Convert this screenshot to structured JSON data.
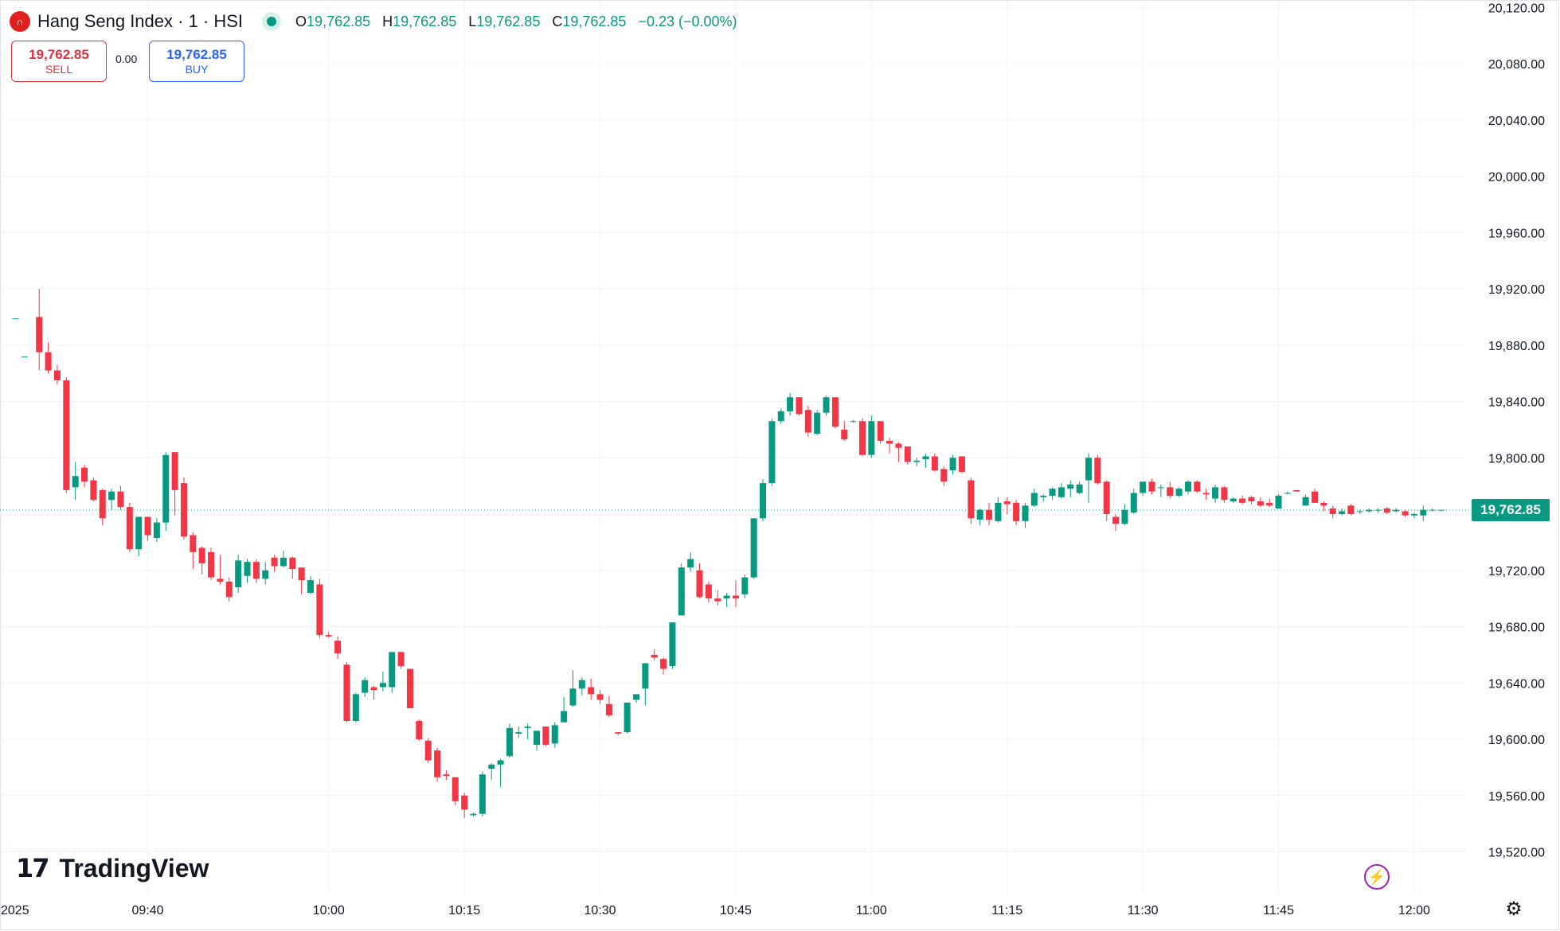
{
  "header": {
    "logo_text": "∩",
    "symbol": "Hang Seng Index · 1 · HSI",
    "open_label": "O",
    "open": "19,762.85",
    "high_label": "H",
    "high": "19,762.85",
    "low_label": "L",
    "low": "19,762.85",
    "close_label": "C",
    "close": "19,762.85",
    "change": "−0.23 (−0.00%)"
  },
  "trade": {
    "sell_price": "19,762.85",
    "sell_label": "SELL",
    "spread": "0.00",
    "buy_price": "19,762.85",
    "buy_label": "BUY"
  },
  "branding": {
    "mark": "17",
    "name": "TradingView"
  },
  "icons": {
    "bolt": "⚡",
    "settings": "⚙"
  },
  "colors": {
    "up": "#089981",
    "down": "#f23645",
    "grid": "#f0f3fa",
    "text": "#131722"
  },
  "chart_data": {
    "type": "candlestick",
    "interval": "1 minute",
    "ylim": [
      19500,
      20125
    ],
    "y_ticks": [
      "20,120.00",
      "20,080.00",
      "20,040.00",
      "20,000.00",
      "19,960.00",
      "19,920.00",
      "19,880.00",
      "19,840.00",
      "19,800.00",
      "19,760.00",
      "19,720.00",
      "19,680.00",
      "19,640.00",
      "19,600.00",
      "19,560.00",
      "19,520.00"
    ],
    "x_ticks": [
      {
        "minute": 24,
        "label": "2025"
      },
      {
        "minute": 40,
        "label": "09:40"
      },
      {
        "minute": 60,
        "label": "10:00"
      },
      {
        "minute": 75,
        "label": "10:15"
      },
      {
        "minute": 90,
        "label": "10:30"
      },
      {
        "minute": 105,
        "label": "10:45"
      },
      {
        "minute": 120,
        "label": "11:00"
      },
      {
        "minute": 135,
        "label": "11:15"
      },
      {
        "minute": 150,
        "label": "11:30"
      },
      {
        "minute": 165,
        "label": "11:45"
      },
      {
        "minute": 180,
        "label": "12:00"
      }
    ],
    "last_price": 19762.85,
    "last_price_label": "19,762.85",
    "candles": [
      {
        "o": 19899,
        "h": 19899,
        "l": 19899,
        "c": 19899
      },
      {
        "o": 19872,
        "h": 19872,
        "l": 19872,
        "c": 19872
      },
      {
        "o": 19900,
        "h": 19920,
        "l": 19862,
        "c": 19875
      },
      {
        "o": 19875,
        "h": 19882,
        "l": 19860,
        "c": 19862
      },
      {
        "o": 19862,
        "h": 19866,
        "l": 19852,
        "c": 19855
      },
      {
        "o": 19855,
        "h": 19857,
        "l": 19775,
        "c": 19777
      },
      {
        "o": 19779,
        "h": 19797,
        "l": 19770,
        "c": 19787
      },
      {
        "o": 19793,
        "h": 19795,
        "l": 19779,
        "c": 19783
      },
      {
        "o": 19784,
        "h": 19786,
        "l": 19769,
        "c": 19770
      },
      {
        "o": 19777,
        "h": 19778,
        "l": 19752,
        "c": 19757
      },
      {
        "o": 19770,
        "h": 19778,
        "l": 19763,
        "c": 19776
      },
      {
        "o": 19776,
        "h": 19780,
        "l": 19763,
        "c": 19765
      },
      {
        "o": 19765,
        "h": 19768,
        "l": 19733,
        "c": 19735
      },
      {
        "o": 19735,
        "h": 19754,
        "l": 19730,
        "c": 19758
      },
      {
        "o": 19758,
        "h": 19758,
        "l": 19741,
        "c": 19745
      },
      {
        "o": 19743,
        "h": 19757,
        "l": 19740,
        "c": 19754
      },
      {
        "o": 19754,
        "h": 19804,
        "l": 19748,
        "c": 19802
      },
      {
        "o": 19804,
        "h": 19804,
        "l": 19759,
        "c": 19777
      },
      {
        "o": 19782,
        "h": 19786,
        "l": 19742,
        "c": 19744
      },
      {
        "o": 19745,
        "h": 19747,
        "l": 19721,
        "c": 19733
      },
      {
        "o": 19736,
        "h": 19737,
        "l": 19717,
        "c": 19725
      },
      {
        "o": 19733,
        "h": 19736,
        "l": 19713,
        "c": 19715
      },
      {
        "o": 19714,
        "h": 19731,
        "l": 19710,
        "c": 19712
      },
      {
        "o": 19712,
        "h": 19715,
        "l": 19698,
        "c": 19701
      },
      {
        "o": 19708,
        "h": 19731,
        "l": 19704,
        "c": 19727
      },
      {
        "o": 19716,
        "h": 19728,
        "l": 19711,
        "c": 19726
      },
      {
        "o": 19726,
        "h": 19728,
        "l": 19711,
        "c": 19714
      },
      {
        "o": 19714,
        "h": 19726,
        "l": 19710,
        "c": 19720
      },
      {
        "o": 19729,
        "h": 19731,
        "l": 19719,
        "c": 19723
      },
      {
        "o": 19723,
        "h": 19734,
        "l": 19722,
        "c": 19729
      },
      {
        "o": 19729,
        "h": 19730,
        "l": 19714,
        "c": 19721
      },
      {
        "o": 19722,
        "h": 19722,
        "l": 19703,
        "c": 19713
      },
      {
        "o": 19704,
        "h": 19716,
        "l": 19703,
        "c": 19713
      },
      {
        "o": 19710,
        "h": 19714,
        "l": 19672,
        "c": 19674
      },
      {
        "o": 19674,
        "h": 19676,
        "l": 19672,
        "c": 19673
      },
      {
        "o": 19670,
        "h": 19673,
        "l": 19657,
        "c": 19661
      },
      {
        "o": 19653,
        "h": 19655,
        "l": 19612,
        "c": 19613
      },
      {
        "o": 19613,
        "h": 19633,
        "l": 19612,
        "c": 19632
      },
      {
        "o": 19633,
        "h": 19644,
        "l": 19630,
        "c": 19642
      },
      {
        "o": 19637,
        "h": 19638,
        "l": 19628,
        "c": 19635
      },
      {
        "o": 19637,
        "h": 19648,
        "l": 19634,
        "c": 19640
      },
      {
        "o": 19637,
        "h": 19662,
        "l": 19633,
        "c": 19662
      },
      {
        "o": 19662,
        "h": 19662,
        "l": 19650,
        "c": 19652
      },
      {
        "o": 19650,
        "h": 19648,
        "l": 19622,
        "c": 19622
      },
      {
        "o": 19613,
        "h": 19614,
        "l": 19599,
        "c": 19600
      },
      {
        "o": 19599,
        "h": 19601,
        "l": 19583,
        "c": 19585
      },
      {
        "o": 19592,
        "h": 19594,
        "l": 19570,
        "c": 19573
      },
      {
        "o": 19575,
        "h": 19578,
        "l": 19571,
        "c": 19574
      },
      {
        "o": 19573,
        "h": 19573,
        "l": 19553,
        "c": 19556
      },
      {
        "o": 19560,
        "h": 19562,
        "l": 19544,
        "c": 19550
      },
      {
        "o": 19546,
        "h": 19548,
        "l": 19545,
        "c": 19547
      },
      {
        "o": 19547,
        "h": 19577,
        "l": 19545,
        "c": 19575
      },
      {
        "o": 19579,
        "h": 19583,
        "l": 19571,
        "c": 19582
      },
      {
        "o": 19582,
        "h": 19586,
        "l": 19566,
        "c": 19585
      },
      {
        "o": 19588,
        "h": 19611,
        "l": 19587,
        "c": 19608
      },
      {
        "o": 19604,
        "h": 19609,
        "l": 19601,
        "c": 19605
      },
      {
        "o": 19608,
        "h": 19611,
        "l": 19600,
        "c": 19609
      },
      {
        "o": 19596,
        "h": 19603,
        "l": 19592,
        "c": 19606
      },
      {
        "o": 19609,
        "h": 19609,
        "l": 19595,
        "c": 19596
      },
      {
        "o": 19597,
        "h": 19612,
        "l": 19594,
        "c": 19610
      },
      {
        "o": 19612,
        "h": 19630,
        "l": 19613,
        "c": 19620
      },
      {
        "o": 19624,
        "h": 19649,
        "l": 19623,
        "c": 19636
      },
      {
        "o": 19636,
        "h": 19644,
        "l": 19631,
        "c": 19642
      },
      {
        "o": 19637,
        "h": 19643,
        "l": 19628,
        "c": 19632
      },
      {
        "o": 19632,
        "h": 19635,
        "l": 19625,
        "c": 19628
      },
      {
        "o": 19625,
        "h": 19631,
        "l": 19616,
        "c": 19617
      },
      {
        "o": 19605,
        "h": 19604,
        "l": 19603,
        "c": 19604
      },
      {
        "o": 19605,
        "h": 19626,
        "l": 19604,
        "c": 19626
      },
      {
        "o": 19628,
        "h": 19632,
        "l": 19626,
        "c": 19632
      },
      {
        "o": 19636,
        "h": 19653,
        "l": 19624,
        "c": 19654
      },
      {
        "o": 19660,
        "h": 19664,
        "l": 19656,
        "c": 19658
      },
      {
        "o": 19657,
        "h": 19658,
        "l": 19646,
        "c": 19650
      },
      {
        "o": 19652,
        "h": 19683,
        "l": 19650,
        "c": 19683
      },
      {
        "o": 19688,
        "h": 19725,
        "l": 19688,
        "c": 19722
      },
      {
        "o": 19722,
        "h": 19733,
        "l": 19719,
        "c": 19728
      },
      {
        "o": 19720,
        "h": 19725,
        "l": 19700,
        "c": 19701
      },
      {
        "o": 19710,
        "h": 19712,
        "l": 19697,
        "c": 19700
      },
      {
        "o": 19700,
        "h": 19706,
        "l": 19695,
        "c": 19698
      },
      {
        "o": 19700,
        "h": 19704,
        "l": 19694,
        "c": 19702
      },
      {
        "o": 19702,
        "h": 19713,
        "l": 19694,
        "c": 19700
      },
      {
        "o": 19703,
        "h": 19717,
        "l": 19700,
        "c": 19715
      },
      {
        "o": 19715,
        "h": 19757,
        "l": 19714,
        "c": 19757
      },
      {
        "o": 19757,
        "h": 19785,
        "l": 19755,
        "c": 19782
      },
      {
        "o": 19782,
        "h": 19828,
        "l": 19780,
        "c": 19826
      },
      {
        "o": 19826,
        "h": 19835,
        "l": 19824,
        "c": 19833
      },
      {
        "o": 19833,
        "h": 19846,
        "l": 19830,
        "c": 19843
      },
      {
        "o": 19843,
        "h": 19843,
        "l": 19830,
        "c": 19831
      },
      {
        "o": 19834,
        "h": 19837,
        "l": 19815,
        "c": 19818
      },
      {
        "o": 19817,
        "h": 19834,
        "l": 19816,
        "c": 19832
      },
      {
        "o": 19832,
        "h": 19844,
        "l": 19830,
        "c": 19843
      },
      {
        "o": 19843,
        "h": 19843,
        "l": 19821,
        "c": 19822
      },
      {
        "o": 19820,
        "h": 19826,
        "l": 19812,
        "c": 19813
      },
      {
        "o": 19826,
        "h": 19827,
        "l": 19825,
        "c": 19826
      },
      {
        "o": 19826,
        "h": 19828,
        "l": 19801,
        "c": 19802
      },
      {
        "o": 19802,
        "h": 19830,
        "l": 19800,
        "c": 19826
      },
      {
        "o": 19826,
        "h": 19826,
        "l": 19810,
        "c": 19812
      },
      {
        "o": 19812,
        "h": 19814,
        "l": 19803,
        "c": 19810
      },
      {
        "o": 19810,
        "h": 19811,
        "l": 19797,
        "c": 19807
      },
      {
        "o": 19808,
        "h": 19808,
        "l": 19795,
        "c": 19797
      },
      {
        "o": 19797,
        "h": 19800,
        "l": 19794,
        "c": 19798
      },
      {
        "o": 19799,
        "h": 19803,
        "l": 19793,
        "c": 19801
      },
      {
        "o": 19801,
        "h": 19803,
        "l": 19790,
        "c": 19791
      },
      {
        "o": 19792,
        "h": 19794,
        "l": 19780,
        "c": 19783
      },
      {
        "o": 19791,
        "h": 19802,
        "l": 19788,
        "c": 19800
      },
      {
        "o": 19801,
        "h": 19801,
        "l": 19789,
        "c": 19790
      },
      {
        "o": 19784,
        "h": 19786,
        "l": 19753,
        "c": 19757
      },
      {
        "o": 19756,
        "h": 19764,
        "l": 19752,
        "c": 19763
      },
      {
        "o": 19763,
        "h": 19768,
        "l": 19752,
        "c": 19756
      },
      {
        "o": 19755,
        "h": 19772,
        "l": 19754,
        "c": 19768
      },
      {
        "o": 19769,
        "h": 19772,
        "l": 19760,
        "c": 19767
      },
      {
        "o": 19768,
        "h": 19770,
        "l": 19752,
        "c": 19755
      },
      {
        "o": 19755,
        "h": 19768,
        "l": 19750,
        "c": 19766
      },
      {
        "o": 19766,
        "h": 19778,
        "l": 19765,
        "c": 19775
      },
      {
        "o": 19772,
        "h": 19774,
        "l": 19769,
        "c": 19773
      },
      {
        "o": 19773,
        "h": 19779,
        "l": 19770,
        "c": 19778
      },
      {
        "o": 19772,
        "h": 19782,
        "l": 19771,
        "c": 19779
      },
      {
        "o": 19778,
        "h": 19784,
        "l": 19772,
        "c": 19781
      },
      {
        "o": 19775,
        "h": 19783,
        "l": 19774,
        "c": 19781
      },
      {
        "o": 19784,
        "h": 19803,
        "l": 19768,
        "c": 19800
      },
      {
        "o": 19800,
        "h": 19802,
        "l": 19781,
        "c": 19782
      },
      {
        "o": 19783,
        "h": 19784,
        "l": 19755,
        "c": 19760
      },
      {
        "o": 19758,
        "h": 19760,
        "l": 19748,
        "c": 19753
      },
      {
        "o": 19753,
        "h": 19767,
        "l": 19752,
        "c": 19763
      },
      {
        "o": 19761,
        "h": 19778,
        "l": 19760,
        "c": 19775
      },
      {
        "o": 19775,
        "h": 19783,
        "l": 19773,
        "c": 19783
      },
      {
        "o": 19783,
        "h": 19785,
        "l": 19774,
        "c": 19776
      },
      {
        "o": 19779,
        "h": 19781,
        "l": 19772,
        "c": 19779
      },
      {
        "o": 19779,
        "h": 19783,
        "l": 19771,
        "c": 19773
      },
      {
        "o": 19773,
        "h": 19779,
        "l": 19772,
        "c": 19778
      },
      {
        "o": 19776,
        "h": 19784,
        "l": 19774,
        "c": 19783
      },
      {
        "o": 19783,
        "h": 19784,
        "l": 19775,
        "c": 19776
      },
      {
        "o": 19775,
        "h": 19778,
        "l": 19770,
        "c": 19774
      },
      {
        "o": 19771,
        "h": 19781,
        "l": 19768,
        "c": 19779
      },
      {
        "o": 19779,
        "h": 19780,
        "l": 19768,
        "c": 19770
      },
      {
        "o": 19769,
        "h": 19772,
        "l": 19768,
        "c": 19771
      },
      {
        "o": 19771,
        "h": 19773,
        "l": 19767,
        "c": 19768
      },
      {
        "o": 19772,
        "h": 19773,
        "l": 19767,
        "c": 19769
      },
      {
        "o": 19769,
        "h": 19772,
        "l": 19765,
        "c": 19766
      },
      {
        "o": 19768,
        "h": 19771,
        "l": 19765,
        "c": 19766
      },
      {
        "o": 19764,
        "h": 19774,
        "l": 19764,
        "c": 19773
      },
      {
        "o": 19775,
        "h": 19776,
        "l": 19774,
        "c": 19775
      },
      {
        "o": 19777,
        "h": 19777,
        "l": 19776,
        "c": 19776
      },
      {
        "o": 19766,
        "h": 19774,
        "l": 19766,
        "c": 19772
      },
      {
        "o": 19776,
        "h": 19778,
        "l": 19768,
        "c": 19768
      },
      {
        "o": 19768,
        "h": 19769,
        "l": 19762,
        "c": 19766
      },
      {
        "o": 19764,
        "h": 19766,
        "l": 19757,
        "c": 19760
      },
      {
        "o": 19760,
        "h": 19764,
        "l": 19759,
        "c": 19762
      },
      {
        "o": 19766,
        "h": 19767,
        "l": 19759,
        "c": 19760
      },
      {
        "o": 19762,
        "h": 19763,
        "l": 19760,
        "c": 19762
      },
      {
        "o": 19762,
        "h": 19764,
        "l": 19761,
        "c": 19763
      },
      {
        "o": 19763,
        "h": 19764,
        "l": 19761,
        "c": 19763
      },
      {
        "o": 19764,
        "h": 19765,
        "l": 19760,
        "c": 19761
      },
      {
        "o": 19762,
        "h": 19764,
        "l": 19761,
        "c": 19763
      },
      {
        "o": 19762,
        "h": 19763,
        "l": 19758,
        "c": 19759
      },
      {
        "o": 19759,
        "h": 19761,
        "l": 19757,
        "c": 19760
      },
      {
        "o": 19759,
        "h": 19766,
        "l": 19755,
        "c": 19763
      },
      {
        "o": 19763,
        "h": 19764,
        "l": 19762,
        "c": 19763
      },
      {
        "o": 19763,
        "h": 19763,
        "l": 19762,
        "c": 19763
      }
    ]
  }
}
